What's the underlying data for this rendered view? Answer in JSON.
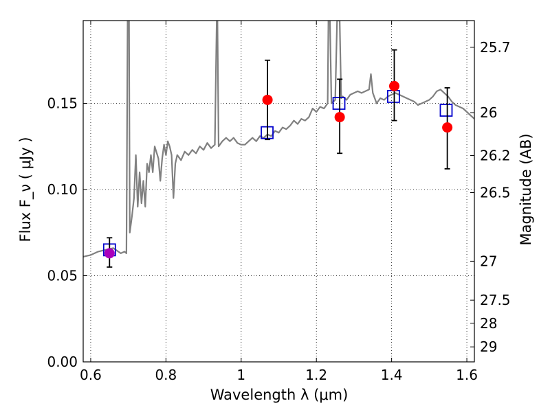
{
  "chart_data": {
    "type": "scatter",
    "xlabel": "Wavelength  λ (μm)",
    "ylabel": "Flux  F_ν  ( μJy )",
    "y2label": "Magnitude (AB)",
    "xlim": [
      0.58,
      1.62
    ],
    "ylim": [
      0.0,
      0.198
    ],
    "grid": true,
    "x_ticks": [
      {
        "value": 0.6,
        "label": "0.6"
      },
      {
        "value": 0.8,
        "label": "0.8"
      },
      {
        "value": 1.0,
        "label": "1"
      },
      {
        "value": 1.2,
        "label": "1.2"
      },
      {
        "value": 1.4,
        "label": "1.4"
      },
      {
        "value": 1.6,
        "label": "1.6"
      }
    ],
    "y_ticks": [
      {
        "value": 0.0,
        "label": "0.00"
      },
      {
        "value": 0.05,
        "label": "0.05"
      },
      {
        "value": 0.1,
        "label": "0.10"
      },
      {
        "value": 0.15,
        "label": "0.15"
      }
    ],
    "y2_ticks": [
      {
        "flux": 0.1825,
        "label": "25.7"
      },
      {
        "flux": 0.1446,
        "label": "26"
      },
      {
        "flux": 0.1197,
        "label": "26.2"
      },
      {
        "flux": 0.0982,
        "label": "26.5"
      },
      {
        "flux": 0.0584,
        "label": "27"
      },
      {
        "flux": 0.0358,
        "label": "27.5"
      },
      {
        "flux": 0.0224,
        "label": "28"
      },
      {
        "flux": 0.0087,
        "label": "29"
      }
    ],
    "series": [
      {
        "kind": "line",
        "color": "#808080",
        "points": [
          [
            0.58,
            0.061
          ],
          [
            0.6,
            0.062
          ],
          [
            0.62,
            0.064
          ],
          [
            0.64,
            0.065
          ],
          [
            0.66,
            0.066
          ],
          [
            0.68,
            0.063
          ],
          [
            0.69,
            0.064
          ],
          [
            0.695,
            0.063
          ],
          [
            0.698,
            0.198
          ],
          [
            0.702,
            0.198
          ],
          [
            0.704,
            0.075
          ],
          [
            0.71,
            0.085
          ],
          [
            0.715,
            0.095
          ],
          [
            0.72,
            0.12
          ],
          [
            0.725,
            0.09
          ],
          [
            0.73,
            0.11
          ],
          [
            0.735,
            0.092
          ],
          [
            0.74,
            0.105
          ],
          [
            0.745,
            0.09
          ],
          [
            0.75,
            0.115
          ],
          [
            0.755,
            0.11
          ],
          [
            0.76,
            0.12
          ],
          [
            0.765,
            0.11
          ],
          [
            0.77,
            0.125
          ],
          [
            0.78,
            0.118
          ],
          [
            0.785,
            0.105
          ],
          [
            0.79,
            0.118
          ],
          [
            0.795,
            0.126
          ],
          [
            0.8,
            0.12
          ],
          [
            0.805,
            0.128
          ],
          [
            0.81,
            0.125
          ],
          [
            0.815,
            0.12
          ],
          [
            0.82,
            0.095
          ],
          [
            0.825,
            0.115
          ],
          [
            0.83,
            0.12
          ],
          [
            0.84,
            0.117
          ],
          [
            0.85,
            0.122
          ],
          [
            0.86,
            0.12
          ],
          [
            0.87,
            0.123
          ],
          [
            0.88,
            0.121
          ],
          [
            0.89,
            0.125
          ],
          [
            0.9,
            0.123
          ],
          [
            0.91,
            0.127
          ],
          [
            0.92,
            0.124
          ],
          [
            0.93,
            0.126
          ],
          [
            0.935,
            0.198
          ],
          [
            0.937,
            0.198
          ],
          [
            0.94,
            0.125
          ],
          [
            0.95,
            0.128
          ],
          [
            0.96,
            0.13
          ],
          [
            0.97,
            0.128
          ],
          [
            0.98,
            0.13
          ],
          [
            0.99,
            0.127
          ],
          [
            1.0,
            0.126
          ],
          [
            1.01,
            0.126
          ],
          [
            1.02,
            0.128
          ],
          [
            1.03,
            0.13
          ],
          [
            1.04,
            0.128
          ],
          [
            1.05,
            0.131
          ],
          [
            1.06,
            0.13
          ],
          [
            1.07,
            0.132
          ],
          [
            1.08,
            0.131
          ],
          [
            1.09,
            0.134
          ],
          [
            1.1,
            0.133
          ],
          [
            1.11,
            0.136
          ],
          [
            1.12,
            0.135
          ],
          [
            1.13,
            0.137
          ],
          [
            1.14,
            0.14
          ],
          [
            1.15,
            0.138
          ],
          [
            1.16,
            0.141
          ],
          [
            1.17,
            0.14
          ],
          [
            1.18,
            0.142
          ],
          [
            1.19,
            0.147
          ],
          [
            1.2,
            0.145
          ],
          [
            1.21,
            0.148
          ],
          [
            1.22,
            0.147
          ],
          [
            1.23,
            0.15
          ],
          [
            1.232,
            0.198
          ],
          [
            1.236,
            0.198
          ],
          [
            1.24,
            0.15
          ],
          [
            1.25,
            0.152
          ],
          [
            1.255,
            0.198
          ],
          [
            1.262,
            0.198
          ],
          [
            1.266,
            0.153
          ],
          [
            1.27,
            0.154
          ],
          [
            1.28,
            0.152
          ],
          [
            1.29,
            0.155
          ],
          [
            1.3,
            0.156
          ],
          [
            1.31,
            0.157
          ],
          [
            1.32,
            0.156
          ],
          [
            1.33,
            0.157
          ],
          [
            1.34,
            0.158
          ],
          [
            1.345,
            0.167
          ],
          [
            1.35,
            0.156
          ],
          [
            1.36,
            0.15
          ],
          [
            1.37,
            0.153
          ],
          [
            1.38,
            0.152
          ],
          [
            1.39,
            0.154
          ],
          [
            1.4,
            0.155
          ],
          [
            1.41,
            0.156
          ],
          [
            1.42,
            0.155
          ],
          [
            1.43,
            0.154
          ],
          [
            1.44,
            0.153
          ],
          [
            1.45,
            0.152
          ],
          [
            1.46,
            0.151
          ],
          [
            1.47,
            0.149
          ],
          [
            1.48,
            0.15
          ],
          [
            1.49,
            0.151
          ],
          [
            1.5,
            0.152
          ],
          [
            1.51,
            0.154
          ],
          [
            1.52,
            0.157
          ],
          [
            1.53,
            0.158
          ],
          [
            1.54,
            0.156
          ],
          [
            1.55,
            0.154
          ],
          [
            1.56,
            0.151
          ],
          [
            1.57,
            0.149
          ],
          [
            1.58,
            0.148
          ],
          [
            1.59,
            0.147
          ],
          [
            1.6,
            0.145
          ],
          [
            1.61,
            0.143
          ],
          [
            1.62,
            0.141
          ]
        ]
      },
      {
        "kind": "marker",
        "marker": "open-square",
        "color": "#0000cc",
        "points": [
          [
            0.65,
            0.065
          ],
          [
            1.069,
            0.133
          ],
          [
            1.26,
            0.15
          ],
          [
            1.405,
            0.154
          ],
          [
            1.545,
            0.146
          ]
        ]
      },
      {
        "kind": "marker",
        "marker": "filled-circle",
        "color": "#ff0000",
        "points": [
          [
            0.65,
            0.063
          ],
          [
            1.07,
            0.152
          ],
          [
            1.262,
            0.142
          ],
          [
            1.407,
            0.16
          ],
          [
            1.548,
            0.136
          ]
        ],
        "errors": [
          [
            0.055,
            0.072
          ],
          [
            0.129,
            0.175
          ],
          [
            0.121,
            0.164
          ],
          [
            0.14,
            0.181
          ],
          [
            0.112,
            0.159
          ]
        ]
      }
    ]
  }
}
